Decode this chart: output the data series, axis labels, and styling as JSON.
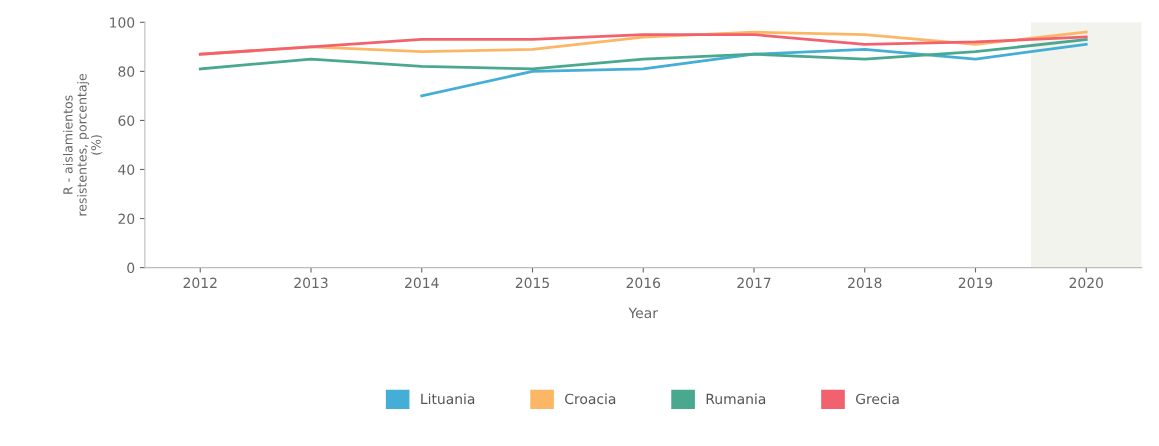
{
  "chart_data": {
    "type": "line",
    "xlabel": "Year",
    "ylabel": "R - aislamientos\nresistentes, porcentaje\n(%)",
    "x": [
      2012,
      2013,
      2014,
      2015,
      2016,
      2017,
      2018,
      2019,
      2020
    ],
    "xlim": [
      2011.5,
      2020.5
    ],
    "xticks": [
      2012,
      2013,
      2014,
      2015,
      2016,
      2017,
      2018,
      2019,
      2020
    ],
    "ylim": [
      0,
      100
    ],
    "yticks": [
      0,
      20,
      40,
      60,
      80,
      100
    ],
    "grid": false,
    "legend": "bottom",
    "marker": "none",
    "line_style": "solid",
    "bands": [
      {
        "axis": "x",
        "from": 2019.5,
        "to": 2020.5,
        "color": "#f1f3ec"
      }
    ],
    "series": [
      {
        "name": "Lituania",
        "color": "#45aed6",
        "values": [
          null,
          null,
          70,
          80,
          81,
          87,
          89,
          85,
          91
        ]
      },
      {
        "name": "Croacia",
        "color": "#fcb766",
        "values": [
          87,
          90,
          88,
          89,
          94,
          96,
          95,
          91,
          96
        ]
      },
      {
        "name": "Rumania",
        "color": "#4aa88e",
        "values": [
          81,
          85,
          82,
          81,
          85,
          87,
          85,
          88,
          93
        ]
      },
      {
        "name": "Grecia",
        "color": "#f2626e",
        "values": [
          87,
          90,
          93,
          93,
          95,
          95,
          91,
          92,
          94
        ]
      }
    ]
  }
}
